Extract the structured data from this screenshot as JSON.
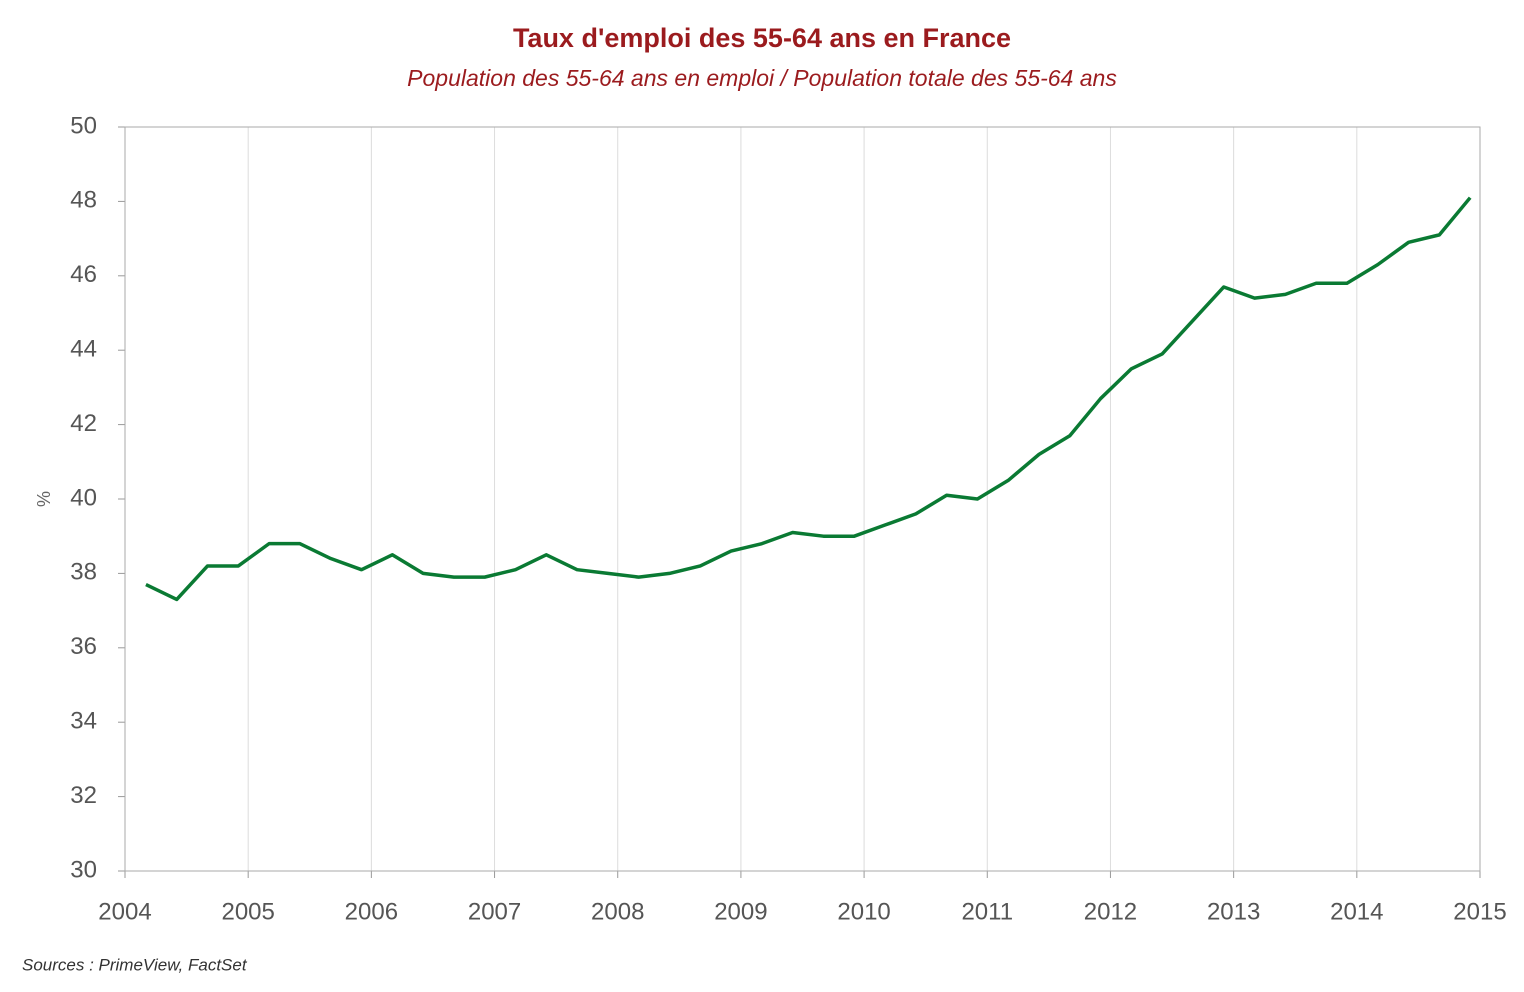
{
  "chart_data": {
    "type": "line",
    "title": "Taux d'emploi des 55-64 ans en France",
    "subtitle": "Population des 55-64 ans en emploi / Population totale des 55-64 ans",
    "y_label": "%",
    "source": "Sources : PrimeView, FactSet",
    "x": [
      2004.17,
      2004.42,
      2004.67,
      2004.92,
      2005.17,
      2005.42,
      2005.67,
      2005.92,
      2006.17,
      2006.42,
      2006.67,
      2006.92,
      2007.17,
      2007.42,
      2007.67,
      2007.92,
      2008.17,
      2008.42,
      2008.67,
      2008.92,
      2009.17,
      2009.42,
      2009.67,
      2009.92,
      2010.17,
      2010.42,
      2010.67,
      2010.92,
      2011.17,
      2011.42,
      2011.67,
      2011.92,
      2012.17,
      2012.42,
      2012.67,
      2012.92,
      2013.17,
      2013.42,
      2013.67,
      2013.92,
      2014.17,
      2014.42,
      2014.67,
      2014.92
    ],
    "series": [
      {
        "color": "#0a7a33",
        "values": [
          37.7,
          37.3,
          38.2,
          38.2,
          38.8,
          38.8,
          38.4,
          38.1,
          38.5,
          38.0,
          37.9,
          37.9,
          38.1,
          38.5,
          38.1,
          38.0,
          37.9,
          38.0,
          38.2,
          38.6,
          38.8,
          39.1,
          39.0,
          39.0,
          39.3,
          39.6,
          40.1,
          40.0,
          40.5,
          41.2,
          41.7,
          42.7,
          43.5,
          43.9,
          44.8,
          45.7,
          45.4,
          45.5,
          45.8,
          45.8,
          46.3,
          46.9,
          47.1,
          48.1
        ]
      }
    ],
    "xlim": [
      2004,
      2015
    ],
    "xticks": [
      2004,
      2005,
      2006,
      2007,
      2008,
      2009,
      2010,
      2011,
      2012,
      2013,
      2014,
      2015
    ],
    "ylim": [
      30,
      50
    ],
    "yticks": [
      30,
      32,
      34,
      36,
      38,
      40,
      42,
      44,
      46,
      48,
      50
    ],
    "grid": true
  }
}
